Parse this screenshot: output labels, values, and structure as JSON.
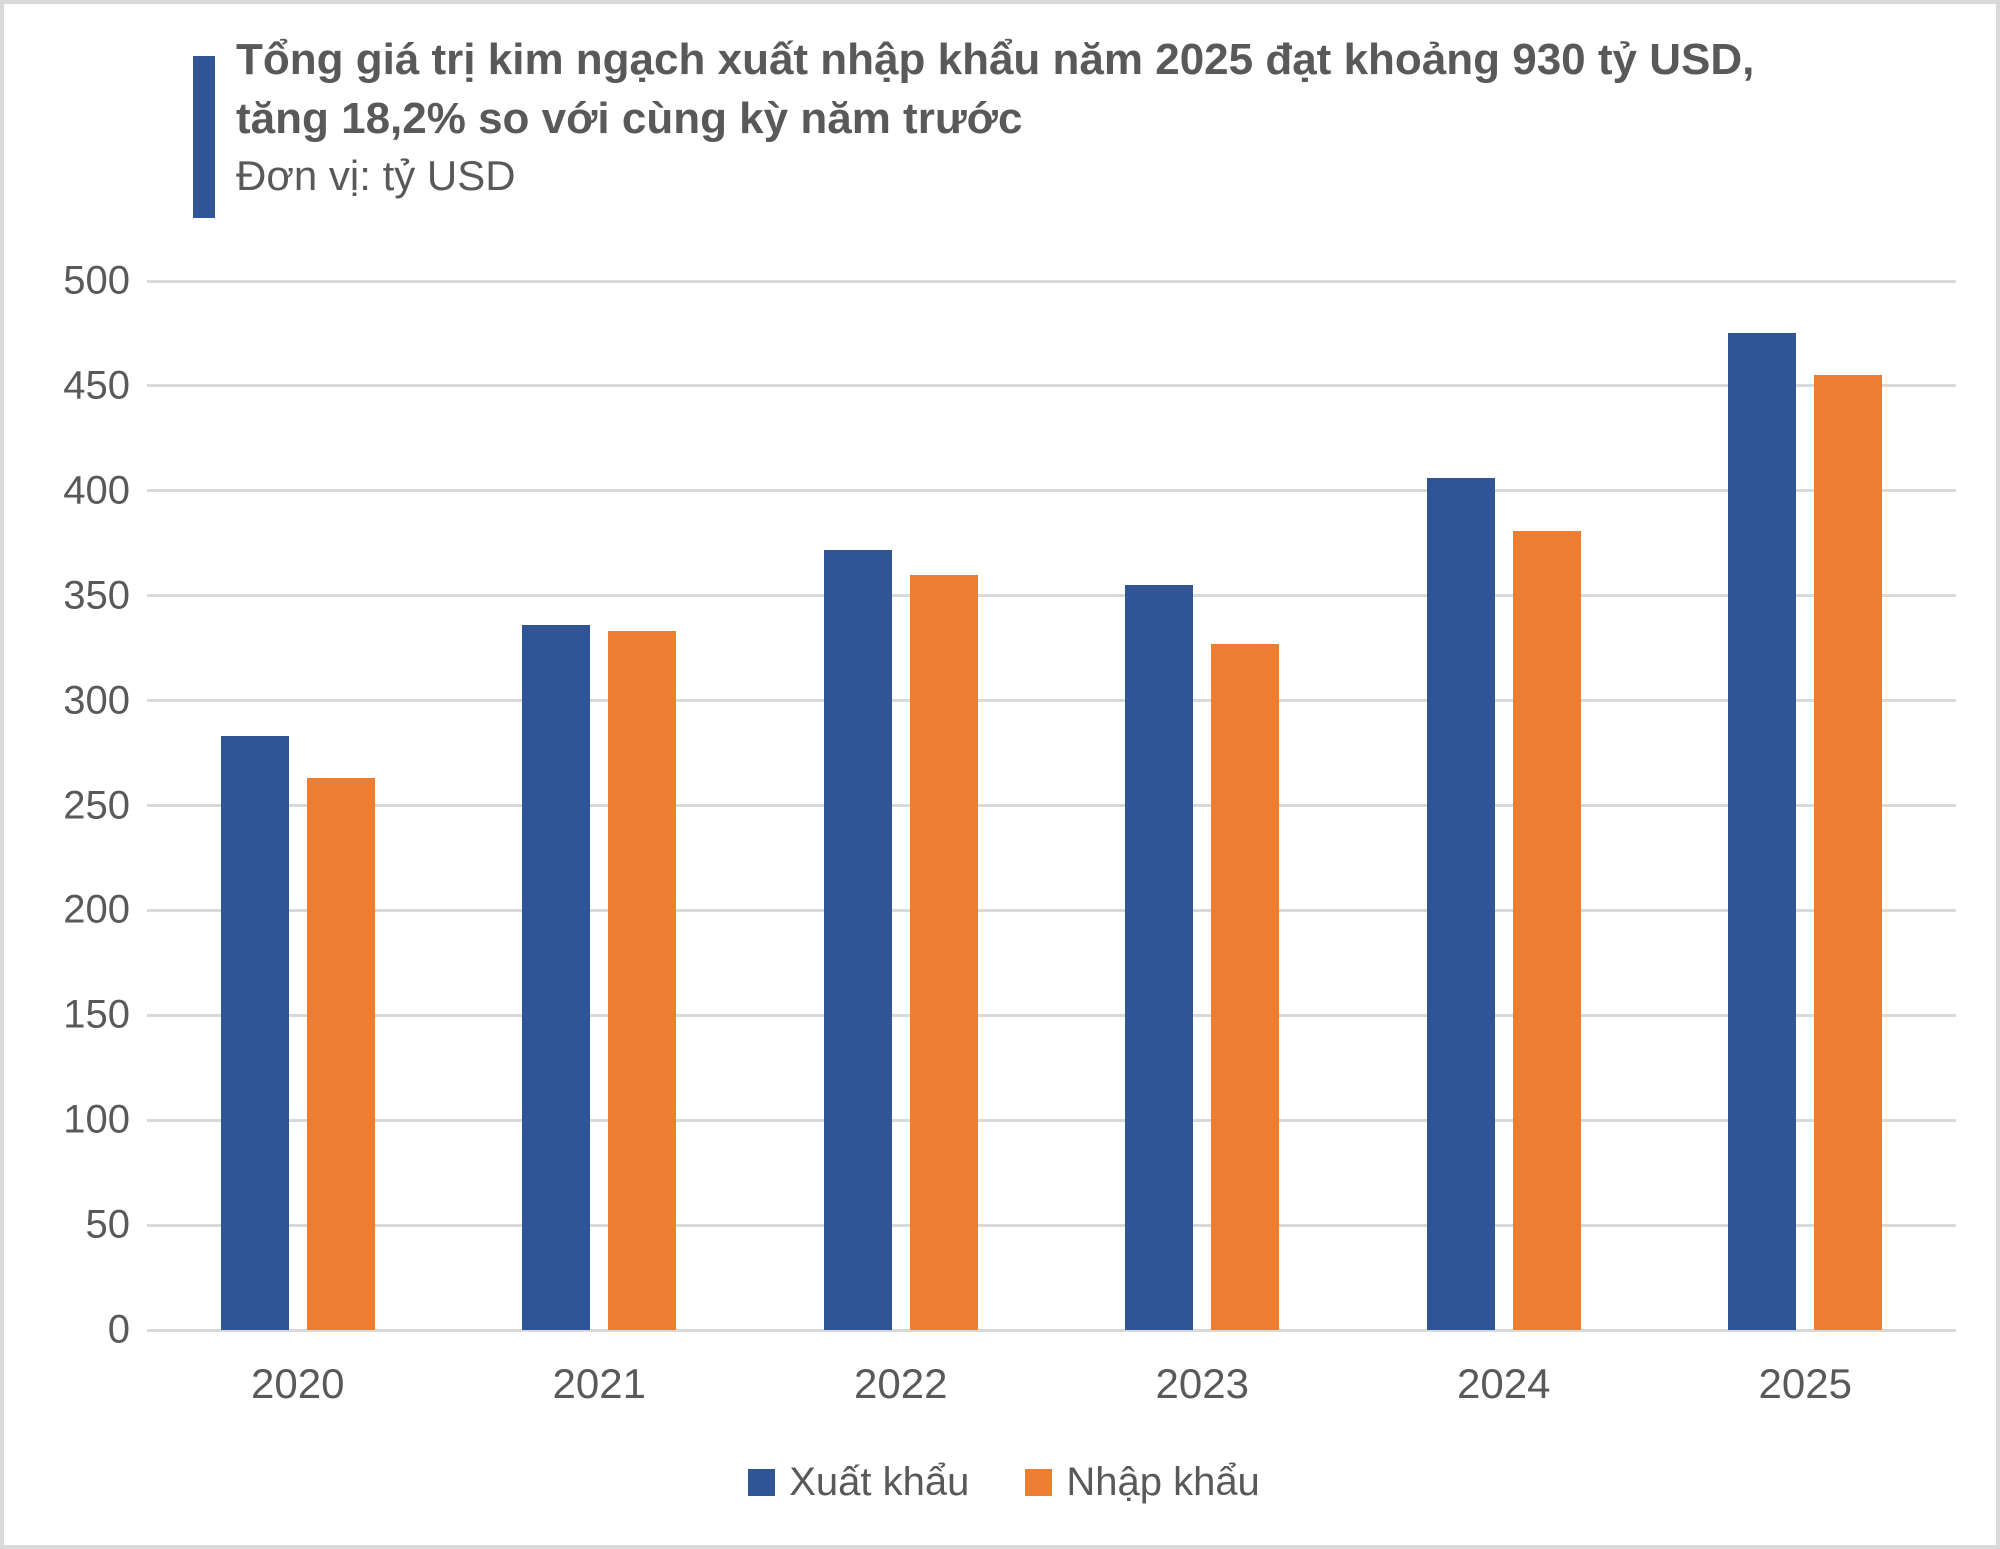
{
  "header": {
    "accent_color": "#2F5597",
    "title_lines": [
      "Tổng giá trị kim ngạch xuất nhập khẩu năm 2025 đạt khoảng 930 tỷ USD,",
      "tăng 18,2% so với cùng kỳ năm trước"
    ],
    "subtitle": "Đơn vị: tỷ USD"
  },
  "chart_data": {
    "type": "bar",
    "title": "Tổng giá trị kim ngạch xuất nhập khẩu năm 2025 đạt khoảng 930 tỷ USD, tăng 18,2% so với cùng kỳ năm trước",
    "subtitle": "Đơn vị: tỷ USD",
    "categories": [
      "2020",
      "2021",
      "2022",
      "2023",
      "2024",
      "2025"
    ],
    "series": [
      {
        "name": "Xuất khẩu",
        "color": "#2F5596",
        "values": [
          283,
          336,
          372,
          355,
          406,
          475
        ]
      },
      {
        "name": "Nhập khẩu",
        "color": "#ED7D31",
        "values": [
          263,
          333,
          360,
          327,
          381,
          455
        ]
      }
    ],
    "xlabel": "",
    "ylabel": "",
    "ylim": [
      0,
      500
    ],
    "yticks": [
      0,
      50,
      100,
      150,
      200,
      250,
      300,
      350,
      400,
      450,
      500
    ],
    "grid": true,
    "gridline_color": "#D9D9D9",
    "axis_label_color": "#595959",
    "legend_position": "bottom"
  }
}
